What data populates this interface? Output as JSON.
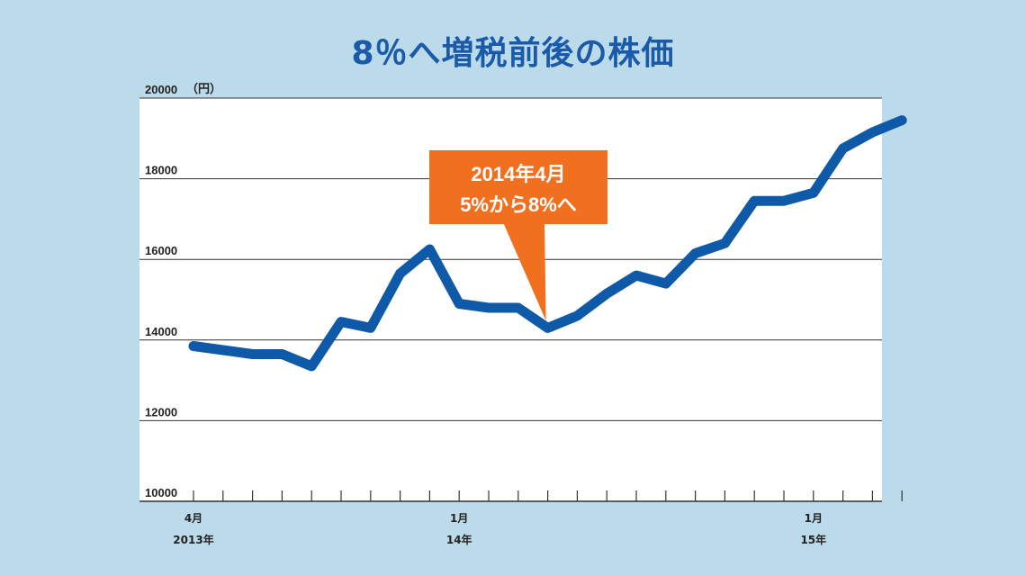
{
  "chart_data": {
    "type": "line",
    "title": "8％へ増税前後の株価",
    "y_unit_label": "（円）",
    "ylim": [
      10000,
      20000
    ],
    "y_ticks": [
      10000,
      12000,
      14000,
      16000,
      18000,
      20000
    ],
    "grid": "horizontal",
    "x_tick_count": 25,
    "x_labels": [
      {
        "index": 0,
        "line1": "4月",
        "line2": "2013年"
      },
      {
        "index": 9,
        "line1": "1月",
        "line2": "14年"
      },
      {
        "index": 21,
        "line1": "1月",
        "line2": "15年"
      }
    ],
    "series": [
      {
        "color": "#0f5aa8",
        "points": [
          [
            0,
            13850
          ],
          [
            1,
            13750
          ],
          [
            2,
            13650
          ],
          [
            3,
            13650
          ],
          [
            4,
            13350
          ],
          [
            5,
            14450
          ],
          [
            6,
            14300
          ],
          [
            7,
            15650
          ],
          [
            8,
            16250
          ],
          [
            9,
            14900
          ],
          [
            10,
            14800
          ],
          [
            11,
            14800
          ],
          [
            12,
            14300
          ],
          [
            13,
            14600
          ],
          [
            14,
            15150
          ],
          [
            15,
            15600
          ],
          [
            16,
            15400
          ],
          [
            17,
            16150
          ],
          [
            18,
            16400
          ],
          [
            19,
            17450
          ],
          [
            20,
            17450
          ],
          [
            21,
            17650
          ],
          [
            22,
            18750
          ],
          [
            23,
            19150
          ],
          [
            24,
            19450
          ]
        ]
      }
    ],
    "annotation": {
      "line1": "2014年4月",
      "line2": "5%から8%へ",
      "point_index": 12,
      "color": "#f07020"
    }
  }
}
